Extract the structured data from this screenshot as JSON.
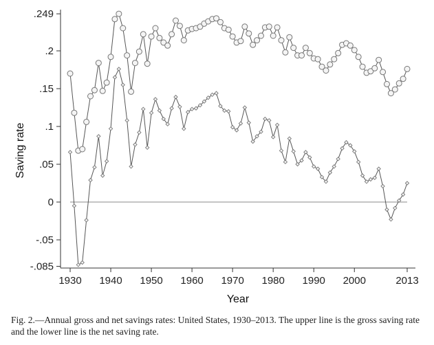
{
  "caption": "Fig. 2.—Annual gross and net savings rates: United States, 1930–2013. The upper line is the gross saving rate and the lower line is the net saving rate.",
  "chart_data": {
    "type": "line",
    "title": "",
    "xlabel": "Year",
    "ylabel": "Saving rate",
    "xlim": [
      1929,
      2014
    ],
    "ylim": [
      -0.085,
      0.249
    ],
    "xticks": [
      1930,
      1940,
      1950,
      1960,
      1970,
      1980,
      1990,
      2000,
      2013
    ],
    "xtick_labels": [
      "1930",
      "1940",
      "1950",
      "1960",
      "1970",
      "1980",
      "1990",
      "2000",
      "2013"
    ],
    "yticks": [
      -0.085,
      -0.05,
      0,
      0.05,
      0.1,
      0.15,
      0.2,
      0.249
    ],
    "ytick_labels": [
      "-.085",
      "-.05",
      "0",
      ".05",
      ".1",
      ".15",
      ".2",
      ".249"
    ],
    "reference_line_y": 0,
    "grid": false,
    "x": [
      1930,
      1931,
      1932,
      1933,
      1934,
      1935,
      1936,
      1937,
      1938,
      1939,
      1940,
      1941,
      1942,
      1943,
      1944,
      1945,
      1946,
      1947,
      1948,
      1949,
      1950,
      1951,
      1952,
      1953,
      1954,
      1955,
      1956,
      1957,
      1958,
      1959,
      1960,
      1961,
      1962,
      1963,
      1964,
      1965,
      1966,
      1967,
      1968,
      1969,
      1970,
      1971,
      1972,
      1973,
      1974,
      1975,
      1976,
      1977,
      1978,
      1979,
      1980,
      1981,
      1982,
      1983,
      1984,
      1985,
      1986,
      1987,
      1988,
      1989,
      1990,
      1991,
      1992,
      1993,
      1994,
      1995,
      1996,
      1997,
      1998,
      1999,
      2000,
      2001,
      2002,
      2003,
      2004,
      2005,
      2006,
      2007,
      2008,
      2009,
      2010,
      2011,
      2012,
      2013
    ],
    "series": [
      {
        "marker": "circle",
        "values": [
          0.17,
          0.118,
          0.068,
          0.07,
          0.106,
          0.14,
          0.148,
          0.184,
          0.147,
          0.158,
          0.192,
          0.242,
          0.249,
          0.23,
          0.194,
          0.146,
          0.184,
          0.199,
          0.222,
          0.183,
          0.219,
          0.23,
          0.217,
          0.211,
          0.207,
          0.222,
          0.24,
          0.233,
          0.214,
          0.227,
          0.229,
          0.23,
          0.232,
          0.236,
          0.239,
          0.242,
          0.243,
          0.238,
          0.23,
          0.228,
          0.219,
          0.211,
          0.213,
          0.232,
          0.223,
          0.208,
          0.214,
          0.22,
          0.231,
          0.232,
          0.22,
          0.231,
          0.214,
          0.198,
          0.218,
          0.204,
          0.194,
          0.194,
          0.204,
          0.197,
          0.19,
          0.189,
          0.179,
          0.174,
          0.182,
          0.189,
          0.197,
          0.208,
          0.21,
          0.207,
          0.201,
          0.192,
          0.179,
          0.171,
          0.173,
          0.177,
          0.188,
          0.172,
          0.156,
          0.144,
          0.149,
          0.157,
          0.163,
          0.176
        ]
      },
      {
        "marker": "diamond",
        "values": [
          0.066,
          -0.005,
          -0.083,
          -0.08,
          -0.024,
          0.029,
          0.046,
          0.087,
          0.035,
          0.054,
          0.097,
          0.165,
          0.176,
          0.155,
          0.108,
          0.047,
          0.076,
          0.092,
          0.123,
          0.072,
          0.118,
          0.136,
          0.121,
          0.11,
          0.103,
          0.124,
          0.139,
          0.126,
          0.097,
          0.119,
          0.123,
          0.124,
          0.128,
          0.133,
          0.138,
          0.142,
          0.144,
          0.127,
          0.121,
          0.12,
          0.099,
          0.095,
          0.104,
          0.125,
          0.105,
          0.08,
          0.087,
          0.093,
          0.11,
          0.108,
          0.086,
          0.102,
          0.068,
          0.053,
          0.084,
          0.067,
          0.05,
          0.055,
          0.066,
          0.059,
          0.047,
          0.044,
          0.033,
          0.027,
          0.039,
          0.047,
          0.057,
          0.071,
          0.079,
          0.075,
          0.067,
          0.053,
          0.035,
          0.027,
          0.03,
          0.032,
          0.044,
          0.021,
          -0.01,
          -0.023,
          -0.008,
          0.002,
          0.01,
          0.025
        ]
      }
    ]
  }
}
